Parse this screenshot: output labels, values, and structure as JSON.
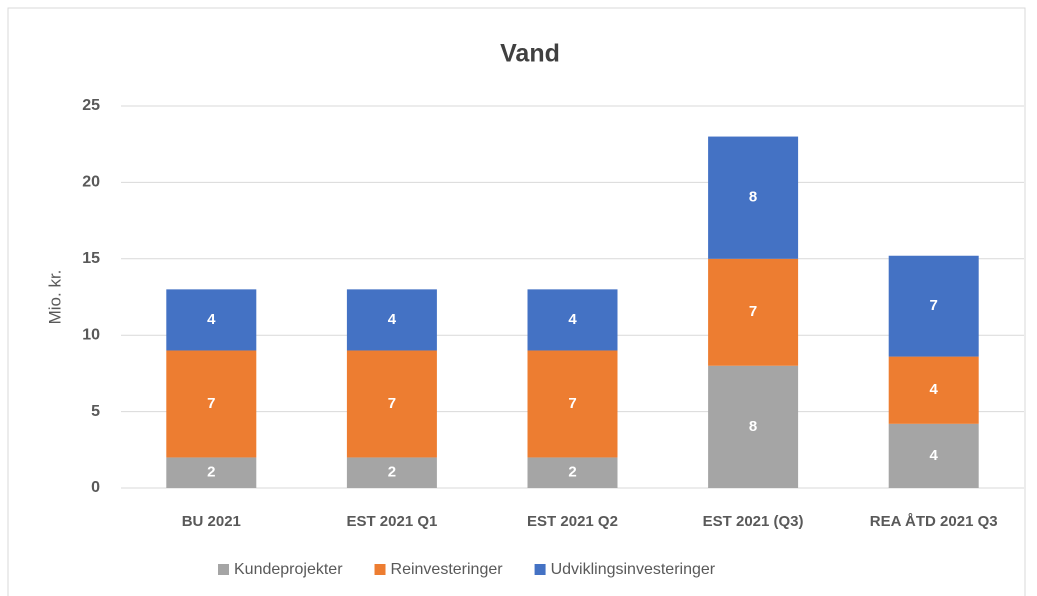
{
  "chart_data": {
    "type": "stacked_bar",
    "title": "Vand",
    "y_label": "Mio. kr.",
    "categories": [
      "BU 2021",
      "EST 2021 Q1",
      "EST 2021 Q2",
      "EST 2021 (Q3)",
      "REA ÅTD 2021 Q3"
    ],
    "series": [
      {
        "name": "Kundeprojekter",
        "color": "#a5a5a5",
        "values": [
          2,
          2,
          2,
          8,
          4.2
        ],
        "value_labels": [
          "2",
          "2",
          "2",
          "8",
          "4"
        ]
      },
      {
        "name": "Reinvesteringer",
        "color": "#ed7d31",
        "values": [
          7,
          7,
          7,
          7,
          4.4
        ],
        "value_labels": [
          "7",
          "7",
          "7",
          "7",
          "4"
        ]
      },
      {
        "name": "Udviklingsinvesteringer",
        "color": "#4472c4",
        "values": [
          4,
          4,
          4,
          8,
          6.6
        ],
        "value_labels": [
          "4",
          "4",
          "4",
          "8",
          "7"
        ]
      }
    ],
    "ylim": [
      0,
      25
    ],
    "yticks": [
      0,
      5,
      10,
      15,
      20,
      25
    ],
    "grid": true,
    "legend": "bottom"
  }
}
